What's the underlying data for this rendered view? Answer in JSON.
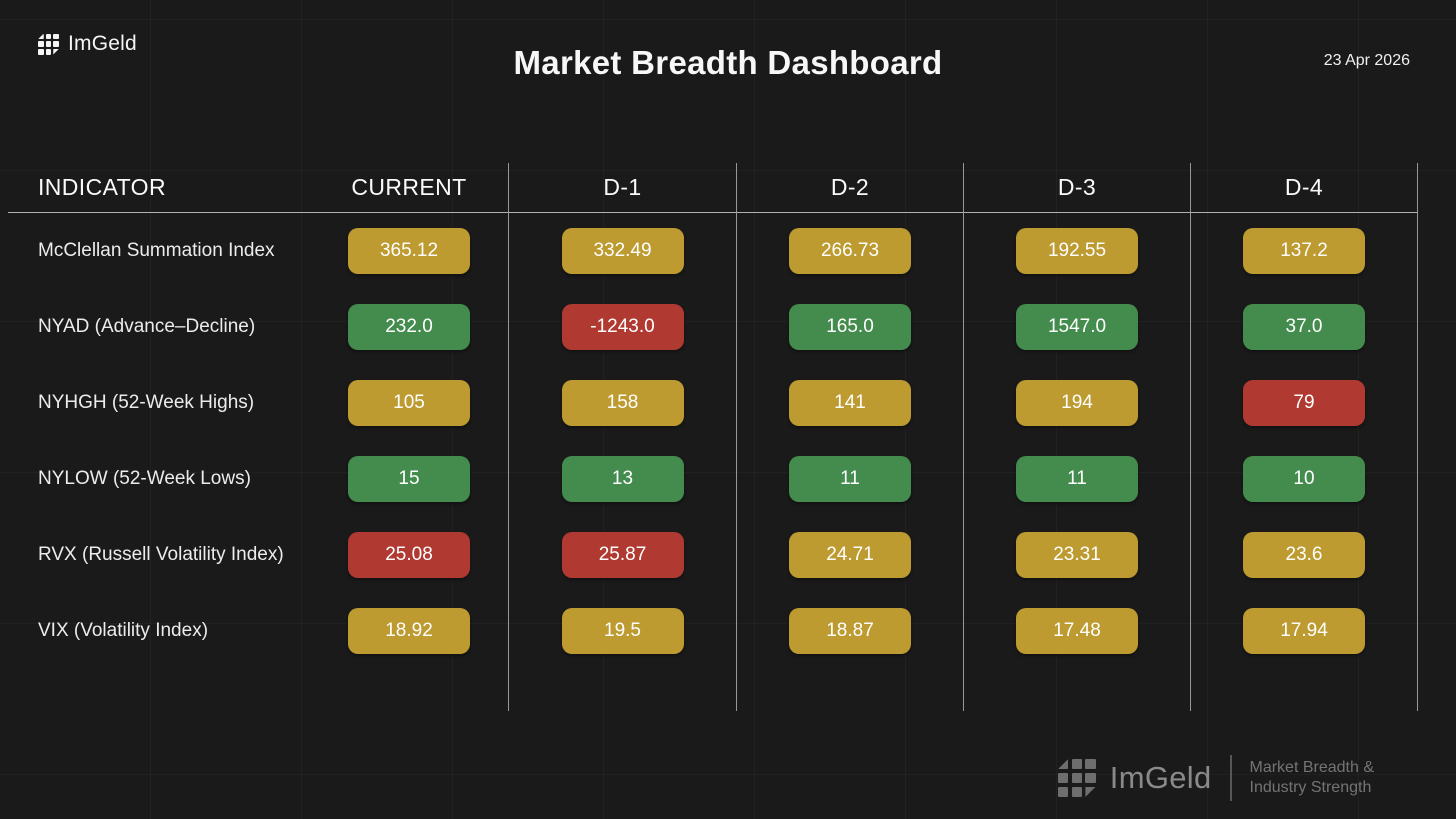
{
  "colors": {
    "bg": "#1a1a1a",
    "text": "#f0f0f0",
    "warn": "#bd9b30",
    "good": "#448c4e",
    "bad": "#b03a32"
  },
  "header": {
    "brand": "ImGeld",
    "title": "Market Breadth Dashboard",
    "date": "23 Apr 2026"
  },
  "table": {
    "columns": {
      "indicator": "INDICATOR",
      "current": "CURRENT",
      "d1": "D-1",
      "d2": "D-2",
      "d3": "D-3",
      "d4": "D-4"
    },
    "rows": [
      {
        "indicator": "McClellan Summation Index",
        "values": [
          {
            "text": "365.12",
            "status": "warn"
          },
          {
            "text": "332.49",
            "status": "warn"
          },
          {
            "text": "266.73",
            "status": "warn"
          },
          {
            "text": "192.55",
            "status": "warn"
          },
          {
            "text": "137.2",
            "status": "warn"
          }
        ]
      },
      {
        "indicator": "NYAD (Advance–Decline)",
        "values": [
          {
            "text": "232.0",
            "status": "good"
          },
          {
            "text": "-1243.0",
            "status": "bad"
          },
          {
            "text": "165.0",
            "status": "good"
          },
          {
            "text": "1547.0",
            "status": "good"
          },
          {
            "text": "37.0",
            "status": "good"
          }
        ]
      },
      {
        "indicator": "NYHGH (52-Week Highs)",
        "values": [
          {
            "text": "105",
            "status": "warn"
          },
          {
            "text": "158",
            "status": "warn"
          },
          {
            "text": "141",
            "status": "warn"
          },
          {
            "text": "194",
            "status": "warn"
          },
          {
            "text": "79",
            "status": "bad"
          }
        ]
      },
      {
        "indicator": "NYLOW (52-Week Lows)",
        "values": [
          {
            "text": "15",
            "status": "good"
          },
          {
            "text": "13",
            "status": "good"
          },
          {
            "text": "11",
            "status": "good"
          },
          {
            "text": "11",
            "status": "good"
          },
          {
            "text": "10",
            "status": "good"
          }
        ]
      },
      {
        "indicator": "RVX (Russell Volatility Index)",
        "values": [
          {
            "text": "25.08",
            "status": "bad"
          },
          {
            "text": "25.87",
            "status": "bad"
          },
          {
            "text": "24.71",
            "status": "warn"
          },
          {
            "text": "23.31",
            "status": "warn"
          },
          {
            "text": "23.6",
            "status": "warn"
          }
        ]
      },
      {
        "indicator": "VIX (Volatility Index)",
        "values": [
          {
            "text": "18.92",
            "status": "warn"
          },
          {
            "text": "19.5",
            "status": "warn"
          },
          {
            "text": "18.87",
            "status": "warn"
          },
          {
            "text": "17.48",
            "status": "warn"
          },
          {
            "text": "17.94",
            "status": "warn"
          }
        ]
      }
    ]
  },
  "footer": {
    "brand": "ImGeld",
    "tagline_top": "Market Breadth &",
    "tagline_bottom": "Industry Strength"
  },
  "chart_data": {
    "type": "table",
    "title": "Market Breadth Dashboard",
    "date": "23 Apr 2026",
    "columns": [
      "CURRENT",
      "D-1",
      "D-2",
      "D-3",
      "D-4"
    ],
    "rows": [
      {
        "indicator": "McClellan Summation Index",
        "values": [
          365.12,
          332.49,
          266.73,
          192.55,
          137.2
        ],
        "status": [
          "warn",
          "warn",
          "warn",
          "warn",
          "warn"
        ]
      },
      {
        "indicator": "NYAD (Advance–Decline)",
        "values": [
          232.0,
          -1243.0,
          165.0,
          1547.0,
          37.0
        ],
        "status": [
          "good",
          "bad",
          "good",
          "good",
          "good"
        ]
      },
      {
        "indicator": "NYHGH (52-Week Highs)",
        "values": [
          105,
          158,
          141,
          194,
          79
        ],
        "status": [
          "warn",
          "warn",
          "warn",
          "warn",
          "bad"
        ]
      },
      {
        "indicator": "NYLOW (52-Week Lows)",
        "values": [
          15,
          13,
          11,
          11,
          10
        ],
        "status": [
          "good",
          "good",
          "good",
          "good",
          "good"
        ]
      },
      {
        "indicator": "RVX (Russell Volatility Index)",
        "values": [
          25.08,
          25.87,
          24.71,
          23.31,
          23.6
        ],
        "status": [
          "bad",
          "bad",
          "warn",
          "warn",
          "warn"
        ]
      },
      {
        "indicator": "VIX (Volatility Index)",
        "values": [
          18.92,
          19.5,
          18.87,
          17.48,
          17.94
        ],
        "status": [
          "warn",
          "warn",
          "warn",
          "warn",
          "warn"
        ]
      }
    ],
    "legend_colors": {
      "good": "#448c4e",
      "warn": "#bd9b30",
      "bad": "#b03a32"
    }
  }
}
